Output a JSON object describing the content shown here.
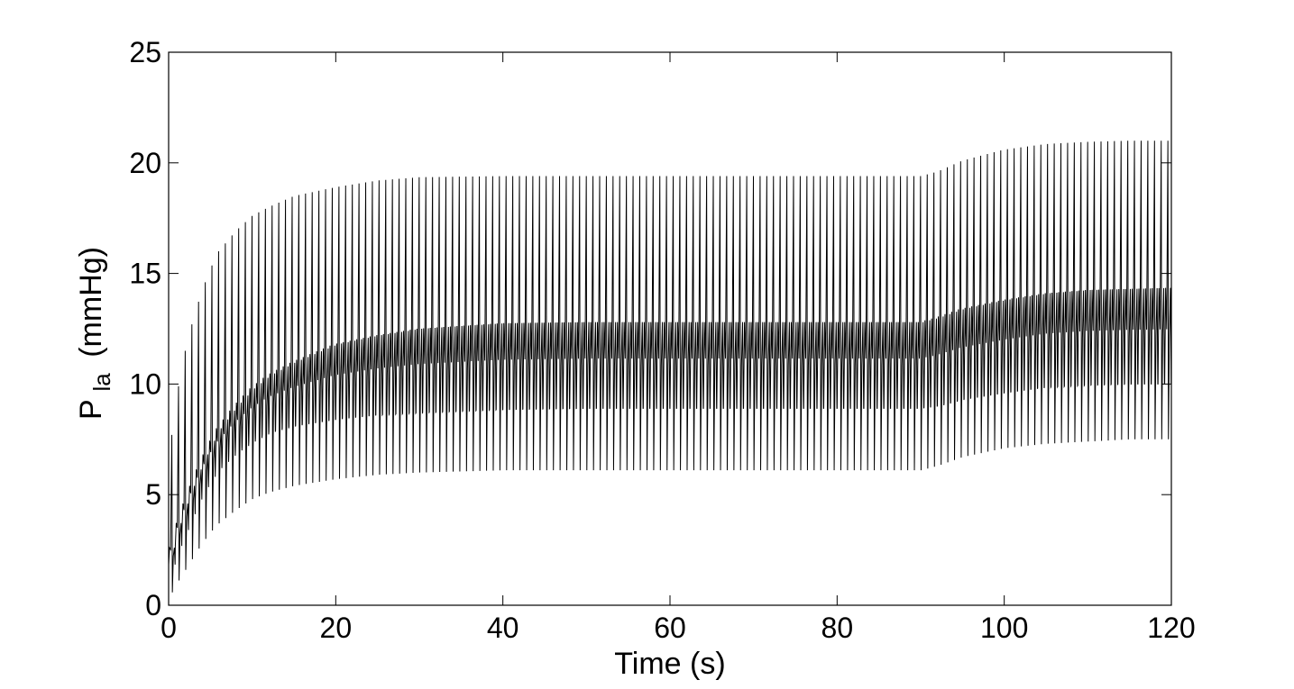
{
  "chart_data": {
    "type": "line",
    "title": "",
    "xlabel": "Time (s)",
    "ylabel": {
      "main": "P",
      "subscript": "la",
      "unit": "(mmHg)"
    },
    "xlim": [
      0,
      120
    ],
    "ylim": [
      0,
      25
    ],
    "xticks": [
      0,
      20,
      40,
      60,
      80,
      100,
      120
    ],
    "yticks": [
      0,
      5,
      10,
      15,
      20,
      25
    ],
    "grid": false,
    "legend": "none",
    "line_color": "#000000",
    "cycle_period_s": 0.8,
    "envelope": {
      "description_points": "time (s) vs pressure (mmHg) envelope values read from the plot",
      "time": [
        0,
        1,
        2,
        3,
        4,
        5,
        6,
        8,
        10,
        12,
        15,
        20,
        25,
        30,
        40,
        50,
        60,
        70,
        80,
        90,
        92,
        95,
        100,
        105,
        110,
        115,
        120
      ],
      "peak_max": [
        6.5,
        9.5,
        11.5,
        13.0,
        14.2,
        15.2,
        16.0,
        16.9,
        17.6,
        18.0,
        18.5,
        18.9,
        19.2,
        19.35,
        19.4,
        19.4,
        19.4,
        19.4,
        19.4,
        19.4,
        19.6,
        20.1,
        20.6,
        20.85,
        20.95,
        21.0,
        21.0
      ],
      "peak_min": [
        0.3,
        1.0,
        1.6,
        2.2,
        2.8,
        3.3,
        3.7,
        4.3,
        4.8,
        5.1,
        5.4,
        5.7,
        5.9,
        6.0,
        6.1,
        6.1,
        6.1,
        6.1,
        6.1,
        6.1,
        6.3,
        6.7,
        7.1,
        7.3,
        7.4,
        7.5,
        7.5
      ],
      "band_high": [
        2.0,
        3.5,
        4.6,
        5.6,
        6.5,
        7.3,
        8.0,
        9.0,
        9.8,
        10.4,
        11.0,
        11.8,
        12.2,
        12.5,
        12.75,
        12.8,
        12.8,
        12.8,
        12.8,
        12.8,
        13.0,
        13.4,
        13.8,
        14.1,
        14.25,
        14.3,
        14.35
      ],
      "band_low": [
        1.4,
        2.5,
        3.4,
        4.3,
        5.1,
        5.7,
        6.2,
        6.9,
        7.4,
        7.8,
        8.1,
        8.4,
        8.6,
        8.7,
        8.85,
        8.9,
        8.9,
        8.9,
        8.9,
        8.9,
        9.0,
        9.3,
        9.6,
        9.85,
        9.95,
        10.0,
        10.0
      ]
    }
  }
}
